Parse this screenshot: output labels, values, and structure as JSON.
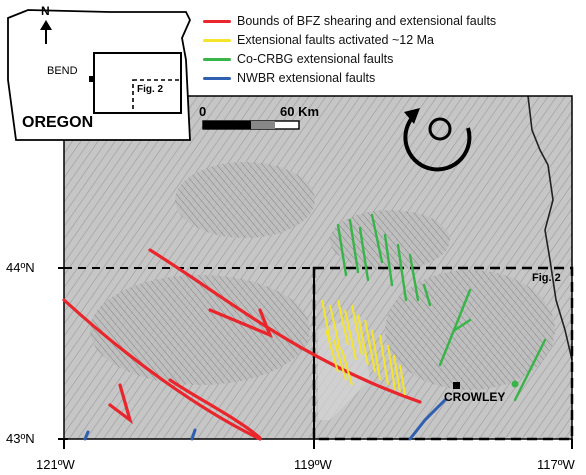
{
  "legend": {
    "items": [
      {
        "label": "Bounds of BFZ shearing and extensional faults",
        "color": "#e8262b"
      },
      {
        "label": "Extensional faults activated ~12 Ma",
        "color": "#f5e42c"
      },
      {
        "label": "Co-CRBG extensional faults",
        "color": "#38b449"
      },
      {
        "label": "NWBR extensional faults",
        "color": "#2f5fb0"
      }
    ]
  },
  "inset": {
    "state_label": "OREGON",
    "north_label": "N",
    "city_label": "BEND",
    "fig_label": "Fig. 2"
  },
  "scale": {
    "start_label": "0",
    "end_label": "60 Km"
  },
  "map": {
    "fig2_label": "Fig. 2",
    "town_label": "CROWLEY",
    "latitudes": [
      "44ºN",
      "43ºN"
    ],
    "longitudes": [
      "121ºW",
      "119ºW",
      "117ºW"
    ]
  },
  "colors": {
    "hillshade": "#c8c8c8",
    "red": "#e8262b",
    "yellow": "#f5e42c",
    "green": "#38b449",
    "blue": "#2f5fb0"
  }
}
